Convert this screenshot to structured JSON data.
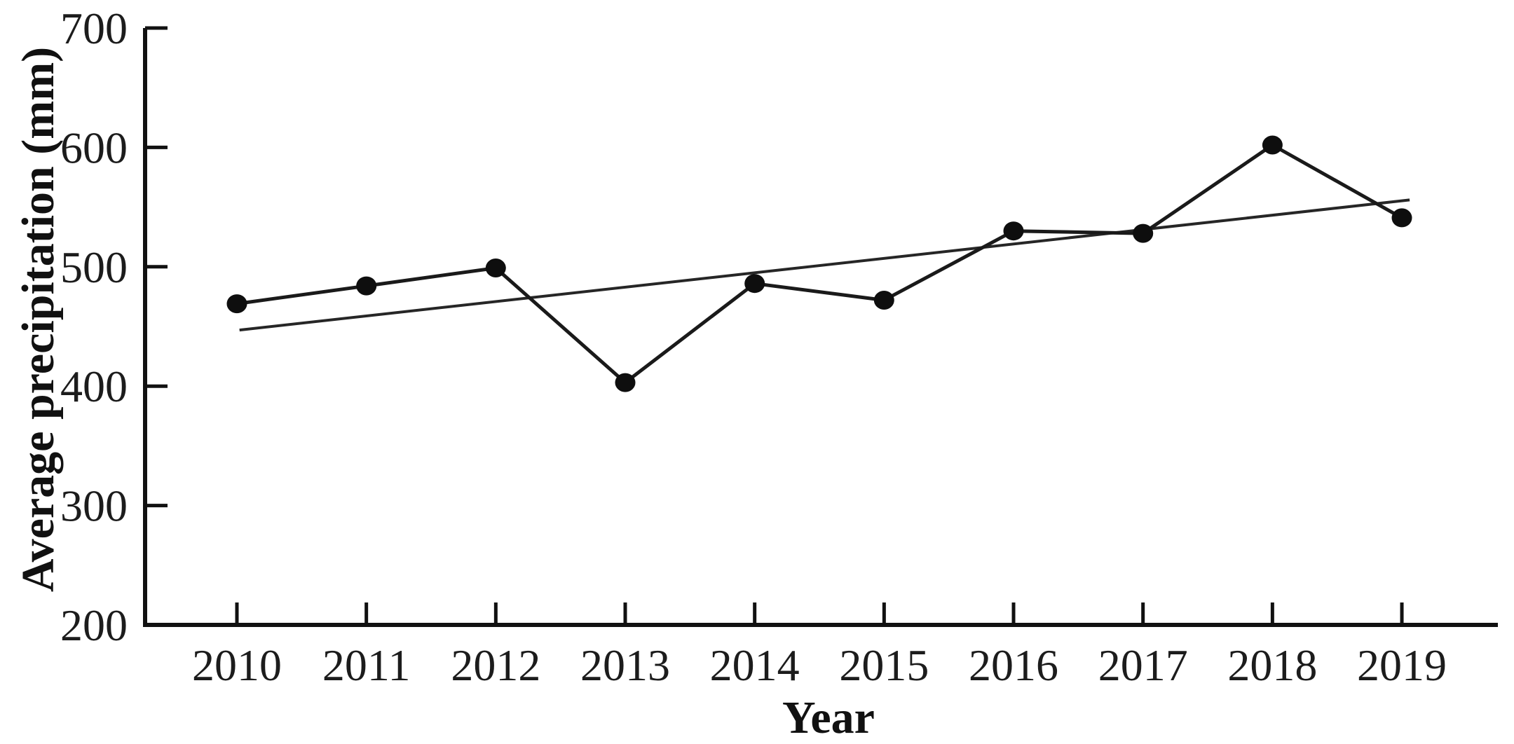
{
  "chart_data": {
    "type": "line",
    "title": "",
    "xlabel": "Year",
    "ylabel": "Average precipitation (mm)",
    "x": [
      2010,
      2011,
      2012,
      2013,
      2014,
      2015,
      2016,
      2017,
      2018,
      2019
    ],
    "series": [
      {
        "name": "annual-average-precipitation",
        "marker": "filled-circle",
        "values": [
          469,
          484,
          499,
          403,
          486,
          472,
          530,
          528,
          602,
          541
        ]
      }
    ],
    "trendline": {
      "name": "linear-trend",
      "start": {
        "x": 2010.02,
        "y": 447
      },
      "end": {
        "x": 2019.06,
        "y": 556
      }
    },
    "ylim": [
      200,
      700
    ],
    "yticks": [
      200,
      300,
      400,
      500,
      600,
      700
    ],
    "ytick_labels": [
      "200",
      "300",
      "400",
      "500",
      "600",
      "700"
    ],
    "xticks": [
      2010,
      2011,
      2012,
      2013,
      2014,
      2015,
      2016,
      2017,
      2018,
      2019
    ],
    "xtick_labels": [
      "2010",
      "2011",
      "2012",
      "2013",
      "2014",
      "2015",
      "2016",
      "2017",
      "2018",
      "2019"
    ],
    "grid": false,
    "legend": "none",
    "colors": {
      "background": "#ffffff",
      "axis": "#111111",
      "text": "#1c1c1c",
      "line": "#1a1a1a",
      "marker": "#0e0e0e",
      "trend": "#262626"
    }
  }
}
